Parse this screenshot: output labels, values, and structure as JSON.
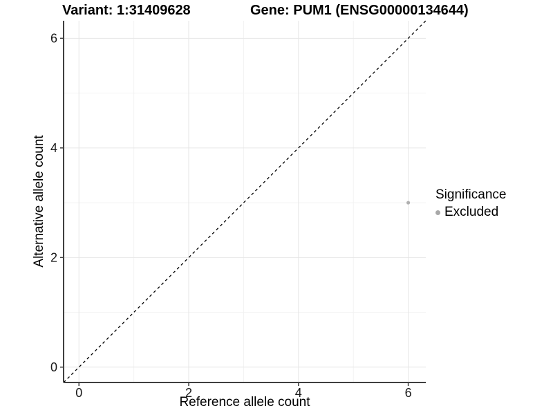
{
  "chart_data": {
    "type": "scatter",
    "title_left": "Variant: 1:31409628",
    "title_right": "Gene: PUM1 (ENSG00000134644)",
    "xlabel": "Reference allele count",
    "ylabel": "Alternative allele count",
    "xlim": [
      -0.28,
      6.32
    ],
    "ylim": [
      -0.28,
      6.32
    ],
    "x_ticks": [
      0,
      2,
      4,
      6
    ],
    "y_ticks": [
      0,
      2,
      4,
      6
    ],
    "x_minor_ticks": [
      1,
      3,
      5
    ],
    "y_minor_ticks": [
      1,
      3,
      5
    ],
    "grid": true,
    "identity_line": {
      "style": "dashed",
      "color": "#000000"
    },
    "series": [
      {
        "name": "Excluded",
        "color": "#b0b0b0",
        "points": [
          {
            "x": 6,
            "y": 3
          }
        ]
      }
    ],
    "legend": {
      "title": "Significance",
      "position": "right",
      "entries": [
        {
          "label": "Excluded",
          "color": "#a8a8a8"
        }
      ]
    },
    "colors": {
      "background": "#ffffff",
      "grid_major": "#e6e6e6",
      "grid_minor": "#f2f2f2",
      "axis_line": "#3f3f3f",
      "tick_text": "#1a1a1a"
    }
  }
}
